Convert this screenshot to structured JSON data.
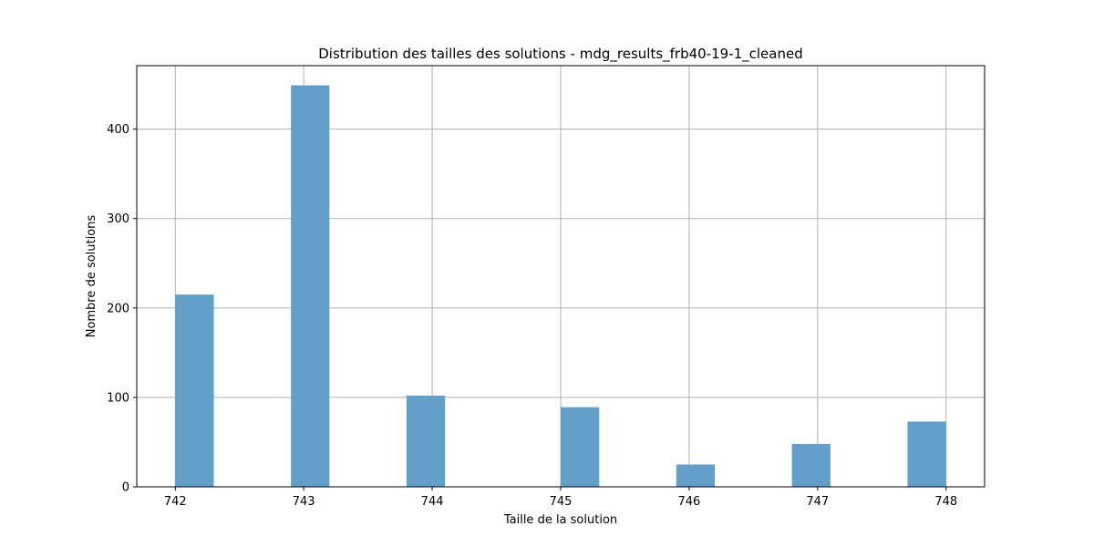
{
  "chart_data": {
    "type": "bar",
    "title": "Distribution des tailles des solutions - mdg_results_frb40-19-1_cleaned",
    "xlabel": "Taille de la solution",
    "ylabel": "Nombre de solutions",
    "bin_width": 0.3,
    "bins": [
      {
        "start": 742.0,
        "end": 742.3,
        "value": 215
      },
      {
        "start": 742.9,
        "end": 743.2,
        "value": 449
      },
      {
        "start": 743.8,
        "end": 744.1,
        "value": 102
      },
      {
        "start": 745.0,
        "end": 745.3,
        "value": 89
      },
      {
        "start": 745.9,
        "end": 746.2,
        "value": 25
      },
      {
        "start": 746.8,
        "end": 747.1,
        "value": 48
      },
      {
        "start": 747.7,
        "end": 748.0,
        "value": 73
      }
    ],
    "xticks": [
      742,
      743,
      744,
      745,
      746,
      747,
      748
    ],
    "yticks": [
      0,
      100,
      200,
      300,
      400
    ],
    "xlim": [
      741.7,
      748.3
    ],
    "ylim": [
      0,
      471
    ],
    "grid": true,
    "colors": {
      "bar": "#62a0ca",
      "grid": "#b0b0b0",
      "axis": "#000000"
    }
  }
}
